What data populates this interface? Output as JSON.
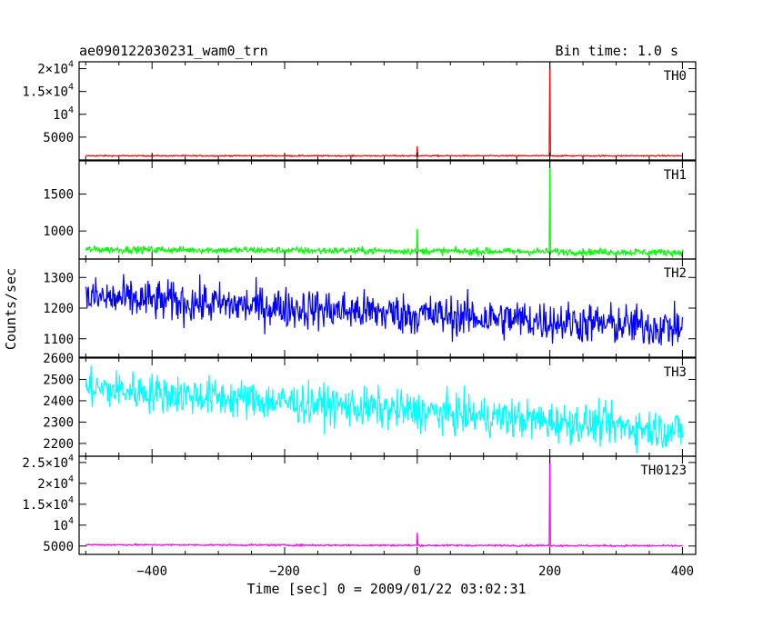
{
  "header": {
    "title": "ae090122030231_wam0_trn",
    "bin_time": "Bin time: 1.0 s"
  },
  "chart_data": {
    "type": "line",
    "xlabel": "Time [sec] 0 = 2009/01/22 03:02:31",
    "ylabel": "Counts/sec",
    "xlim": [
      -510,
      420
    ],
    "x_ticks": [
      -400,
      -200,
      0,
      200,
      400
    ],
    "x_tick_labels": [
      "−400",
      "−200",
      "0",
      "200",
      "400"
    ],
    "series": [
      {
        "name": "TH0",
        "color": "#ff0000",
        "ylim": [
          0,
          21500
        ],
        "y_ticks": [
          5000,
          10000,
          15000,
          20000
        ],
        "y_tick_labels": [
          [
            "5000",
            ""
          ],
          [
            "10",
            "4"
          ],
          [
            "1.5×10",
            "4"
          ],
          [
            "2×10",
            "4"
          ]
        ],
        "baseline": 900,
        "noise": 80,
        "trend": 0,
        "spikes": [
          {
            "x": 0,
            "y": 3000
          },
          {
            "x": 200,
            "y": 21500
          }
        ]
      },
      {
        "name": "TH1",
        "color": "#00ff00",
        "ylim": [
          620,
          1950
        ],
        "y_ticks": [
          1000,
          1500
        ],
        "y_tick_labels": [
          [
            "1000",
            ""
          ],
          [
            "1500",
            ""
          ]
        ],
        "baseline": 750,
        "noise": 28,
        "trend": -40,
        "spikes": [
          {
            "x": 0,
            "y": 1030
          },
          {
            "x": 200,
            "y": 1950
          }
        ]
      },
      {
        "name": "TH2",
        "color": "#0000ff",
        "ylim": [
          1040,
          1360
        ],
        "y_ticks": [
          1100,
          1200,
          1300
        ],
        "y_tick_labels": [
          [
            "1100",
            ""
          ],
          [
            "1200",
            ""
          ],
          [
            "1300",
            ""
          ]
        ],
        "baseline": 1235,
        "noise": 40,
        "trend": -100,
        "spikes": []
      },
      {
        "name": "TH3",
        "color": "#00ffff",
        "ylim": [
          2140,
          2600
        ],
        "y_ticks": [
          2200,
          2300,
          2400,
          2500,
          2600
        ],
        "y_tick_labels": [
          [
            "2200",
            ""
          ],
          [
            "2300",
            ""
          ],
          [
            "2400",
            ""
          ],
          [
            "2500",
            ""
          ],
          [
            "2600",
            ""
          ]
        ],
        "baseline": 2460,
        "noise": 55,
        "trend": -200,
        "spikes": []
      },
      {
        "name": "TH0123",
        "color": "#ff00ff",
        "ylim": [
          3000,
          26500
        ],
        "y_ticks": [
          5000,
          10000,
          15000,
          20000,
          25000
        ],
        "y_tick_labels": [
          [
            "5000",
            ""
          ],
          [
            "10",
            "4"
          ],
          [
            "1.5×10",
            "4"
          ],
          [
            "2×10",
            "4"
          ],
          [
            "2.5×10",
            "4"
          ]
        ],
        "baseline": 5300,
        "noise": 120,
        "trend": -250,
        "spikes": [
          {
            "x": 0,
            "y": 8200
          },
          {
            "x": 200,
            "y": 26500
          }
        ]
      }
    ]
  }
}
